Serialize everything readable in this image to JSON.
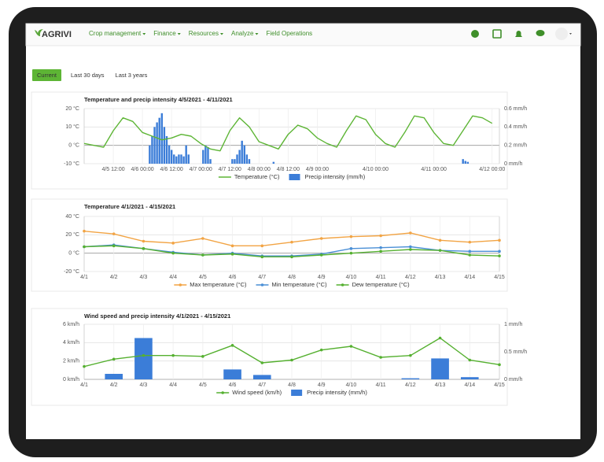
{
  "nav": {
    "logo": "AGRIVI",
    "menu": [
      "Crop management",
      "Finance",
      "Resources",
      "Analyze",
      "Field Operations"
    ]
  },
  "tabs": [
    "Current",
    "Last 30 days",
    "Last 3 years"
  ],
  "chart_data": [
    {
      "type": "combo",
      "title": "Temperature and precip intensity 4/5/2021 - 4/11/2021",
      "xlim": [
        0,
        171
      ],
      "xticks": [
        {
          "value": 12,
          "label": "4/5 12:00"
        },
        {
          "value": 24,
          "label": "4/6 00:00"
        },
        {
          "value": 36,
          "label": "4/6 12:00"
        },
        {
          "value": 48,
          "label": "4/7 00:00"
        },
        {
          "value": 60,
          "label": "4/7 12:00"
        },
        {
          "value": 72,
          "label": "4/8 00:00"
        },
        {
          "value": 84,
          "label": "4/8 12:00"
        },
        {
          "value": 96,
          "label": "4/9 00:00"
        },
        {
          "value": 120,
          "label": "4/10 00:00"
        },
        {
          "value": 144,
          "label": "4/11 00:00"
        },
        {
          "value": 168,
          "label": "4/12 00:00"
        }
      ],
      "ylim": [
        -10,
        20
      ],
      "yticks": [
        {
          "value": 20,
          "label": "20 °C"
        },
        {
          "value": 10,
          "label": "10 °C"
        },
        {
          "value": 0,
          "label": "0 °C"
        },
        {
          "value": -10,
          "label": "-10 °C"
        }
      ],
      "y2lim": [
        0,
        0.6
      ],
      "y2ticks": [
        {
          "value": 0.6,
          "label": "0.6 mm/h"
        },
        {
          "value": 0.4,
          "label": "0.4 mm/h"
        },
        {
          "value": 0.2,
          "label": "0.2 mm/h"
        },
        {
          "value": 0,
          "label": "0 mm/h"
        }
      ],
      "grid": true,
      "legend": "bottom",
      "series": [
        {
          "name": "Temperature (°C)",
          "type": "line",
          "color": "#5db535",
          "x": [
            0,
            4,
            8,
            12,
            16,
            20,
            24,
            28,
            32,
            36,
            40,
            44,
            48,
            52,
            56,
            60,
            64,
            68,
            72,
            76,
            80,
            84,
            88,
            92,
            96,
            100,
            104,
            108,
            112,
            116,
            120,
            124,
            128,
            132,
            136,
            140,
            144,
            148,
            152,
            156,
            160,
            164,
            168
          ],
          "values": [
            1,
            0,
            -1,
            8,
            15,
            13,
            7,
            5,
            3,
            4,
            6,
            5,
            1,
            -2,
            -3,
            8,
            15,
            10,
            2,
            0,
            -2,
            6,
            11,
            9,
            4,
            1,
            -1,
            8,
            16,
            14,
            6,
            1,
            -1,
            7,
            16,
            15,
            7,
            1,
            0,
            8,
            16,
            15,
            12
          ]
        },
        {
          "name": "Precip intensity (mm/h)",
          "type": "bar",
          "axis": "y2",
          "color": "#3b7dd8",
          "x": [
            27,
            28,
            29,
            30,
            31,
            32,
            33,
            34,
            35,
            36,
            37,
            38,
            39,
            40,
            41,
            42,
            43,
            49,
            50,
            51,
            52,
            61,
            62,
            63,
            64,
            65,
            66,
            67,
            68,
            78,
            156,
            157,
            158
          ],
          "values": [
            0.2,
            0.3,
            0.4,
            0.45,
            0.5,
            0.55,
            0.4,
            0.3,
            0.2,
            0.15,
            0.1,
            0.08,
            0.1,
            0.1,
            0.08,
            0.2,
            0.1,
            0.15,
            0.2,
            0.18,
            0.05,
            0.05,
            0.05,
            0.1,
            0.15,
            0.25,
            0.2,
            0.1,
            0.05,
            0.02,
            0.05,
            0.03,
            0.02
          ]
        }
      ]
    },
    {
      "type": "line",
      "title": "Temperature 4/1/2021 - 4/15/2021",
      "categories": [
        "4/1",
        "4/2",
        "4/3",
        "4/4",
        "4/5",
        "4/6",
        "4/7",
        "4/8",
        "4/9",
        "4/10",
        "4/11",
        "4/12",
        "4/13",
        "4/14",
        "4/15"
      ],
      "ylim": [
        -20,
        40
      ],
      "yticks": [
        {
          "value": 40,
          "label": "40 °C"
        },
        {
          "value": 20,
          "label": "20 °C"
        },
        {
          "value": 0,
          "label": "0 °C"
        },
        {
          "value": -20,
          "label": "-20 °C"
        }
      ],
      "grid": true,
      "legend": "bottom",
      "series": [
        {
          "name": "Max temperature (°C)",
          "color": "#f2a444",
          "markers": true,
          "values": [
            24,
            21,
            13,
            11,
            16,
            8,
            8,
            12,
            16,
            18,
            19,
            22,
            14,
            12,
            14
          ]
        },
        {
          "name": "Min temperature (°C)",
          "color": "#4a8fd6",
          "markers": true,
          "values": [
            7,
            9,
            5,
            1,
            -2,
            0,
            -3,
            -3,
            -1,
            5,
            6,
            7,
            3,
            2,
            2
          ]
        },
        {
          "name": "Dew temperature (°C)",
          "color": "#55b030",
          "markers": true,
          "values": [
            7,
            8,
            5,
            0,
            -2,
            -1,
            -4,
            -4,
            -2,
            0,
            2,
            4,
            3,
            -2,
            -3
          ]
        }
      ]
    },
    {
      "type": "combo",
      "title": "Wind speed and precip intensity 4/1/2021 - 4/15/2021",
      "categories": [
        "4/1",
        "4/2",
        "4/3",
        "4/4",
        "4/5",
        "4/6",
        "4/7",
        "4/8",
        "4/9",
        "4/10",
        "4/11",
        "4/12",
        "4/13",
        "4/14",
        "4/15"
      ],
      "ylim": [
        0,
        6
      ],
      "yticks": [
        {
          "value": 6,
          "label": "6 km/h"
        },
        {
          "value": 4,
          "label": "4 km/h"
        },
        {
          "value": 2,
          "label": "2 km/h"
        },
        {
          "value": 0,
          "label": "0 km/h"
        }
      ],
      "y2lim": [
        0,
        1
      ],
      "y2ticks": [
        {
          "value": 1,
          "label": "1 mm/h"
        },
        {
          "value": 0.5,
          "label": "0.5 mm/h"
        },
        {
          "value": 0,
          "label": "0 mm/h"
        }
      ],
      "grid": true,
      "legend": "bottom",
      "series": [
        {
          "name": "Wind speed (km/h)",
          "type": "line",
          "color": "#55b030",
          "markers": true,
          "values": [
            1.4,
            2.2,
            2.6,
            2.6,
            2.5,
            3.7,
            1.8,
            2.1,
            3.2,
            3.6,
            2.4,
            2.6,
            4.5,
            2.1,
            1.6
          ]
        },
        {
          "name": "Precip intensity (mm/h)",
          "type": "bar",
          "axis": "y2",
          "color": "#3b7dd8",
          "values": [
            0,
            0.1,
            0.75,
            0,
            0,
            0.18,
            0.08,
            0,
            0,
            0,
            0,
            0.02,
            0.38,
            0.04,
            0
          ]
        }
      ]
    }
  ]
}
